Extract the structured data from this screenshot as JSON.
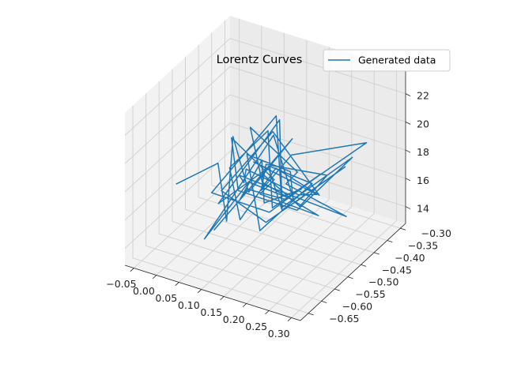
{
  "chart_data": {
    "type": "line3d",
    "title": "Lorentz Curves",
    "legend": {
      "entries": [
        "Generated data"
      ],
      "placement": "top-right"
    },
    "colors": {
      "line": "#1f77b4"
    },
    "grid": true,
    "x_ticks": [
      "−0.05",
      "0.00",
      "0.05",
      "0.10",
      "0.15",
      "0.20",
      "0.25",
      "0.30"
    ],
    "y_ticks": [
      "−0.65",
      "−0.60",
      "−0.55",
      "−0.50",
      "−0.45",
      "−0.40",
      "−0.35",
      "−0.30"
    ],
    "z_ticks": [
      "14",
      "16",
      "18",
      "20",
      "22"
    ],
    "xlim": [
      -0.07,
      0.32
    ],
    "ylim": [
      -0.68,
      -0.28
    ],
    "zlim": [
      12.8,
      23.6
    ],
    "series": [
      {
        "name": "Generated data",
        "x": [
          -0.05,
          0.02,
          0.08,
          0.03,
          0.1,
          0.15,
          0.07,
          0.12,
          0.18,
          0.11,
          0.05,
          0.13,
          0.2,
          0.16,
          0.09,
          0.14,
          0.22,
          0.17,
          0.1,
          0.06,
          0.12,
          0.19,
          0.25,
          0.15,
          0.08,
          0.13,
          0.21,
          0.16,
          0.11,
          0.04,
          0.09,
          0.17,
          0.23,
          0.14,
          0.07,
          0.12,
          0.18,
          0.26,
          0.19,
          0.1,
          0.05,
          0.11,
          0.16,
          0.22,
          0.13,
          0.08,
          0.15,
          0.2,
          0.27,
          0.18,
          0.12,
          0.06,
          0.1,
          0.17,
          0.24,
          0.14,
          0.09,
          0.13,
          0.19,
          0.21,
          0.15,
          0.11,
          0.16,
          0.28,
          0.18,
          0.12,
          0.07,
          0.1,
          0.14,
          0.2
        ],
        "y": [
          -0.52,
          -0.48,
          -0.55,
          -0.44,
          -0.5,
          -0.42,
          -0.58,
          -0.46,
          -0.51,
          -0.4,
          -0.53,
          -0.47,
          -0.43,
          -0.56,
          -0.49,
          -0.41,
          -0.54,
          -0.45,
          -0.5,
          -0.6,
          -0.44,
          -0.48,
          -0.39,
          -0.52,
          -0.57,
          -0.46,
          -0.42,
          -0.5,
          -0.55,
          -0.47,
          -0.41,
          -0.53,
          -0.45,
          -0.49,
          -0.59,
          -0.43,
          -0.51,
          -0.38,
          -0.47,
          -0.54,
          -0.48,
          -0.42,
          -0.56,
          -0.44,
          -0.5,
          -0.46,
          -0.4,
          -0.53,
          -0.42,
          -0.49,
          -0.57,
          -0.45,
          -0.51,
          -0.43,
          -0.48,
          -0.55,
          -0.41,
          -0.5,
          -0.46,
          -0.39,
          -0.52,
          -0.47,
          -0.44,
          -0.36,
          -0.5,
          -0.54,
          -0.48,
          -0.45,
          -0.51,
          -0.47
        ],
        "z": [
          16.0,
          17.5,
          15.2,
          18.8,
          16.6,
          19.5,
          15.0,
          17.9,
          16.3,
          20.1,
          15.8,
          18.2,
          17.0,
          15.5,
          19.0,
          16.9,
          18.5,
          15.9,
          17.3,
          14.6,
          19.8,
          16.4,
          18.0,
          15.3,
          17.7,
          20.5,
          16.1,
          18.9,
          15.6,
          17.2,
          19.3,
          16.7,
          18.3,
          15.4,
          17.8,
          21.0,
          16.5,
          18.6,
          15.7,
          17.4,
          19.6,
          16.2,
          18.1,
          15.1,
          17.6,
          20.3,
          16.8,
          18.7,
          15.2,
          17.1,
          19.2,
          16.0,
          18.4,
          15.9,
          17.5,
          20.0,
          16.6,
          18.2,
          15.8,
          17.0,
          19.4,
          16.3,
          18.8,
          19.5,
          16.9,
          17.7,
          15.5,
          18.0,
          16.4,
          17.3
        ]
      }
    ]
  }
}
